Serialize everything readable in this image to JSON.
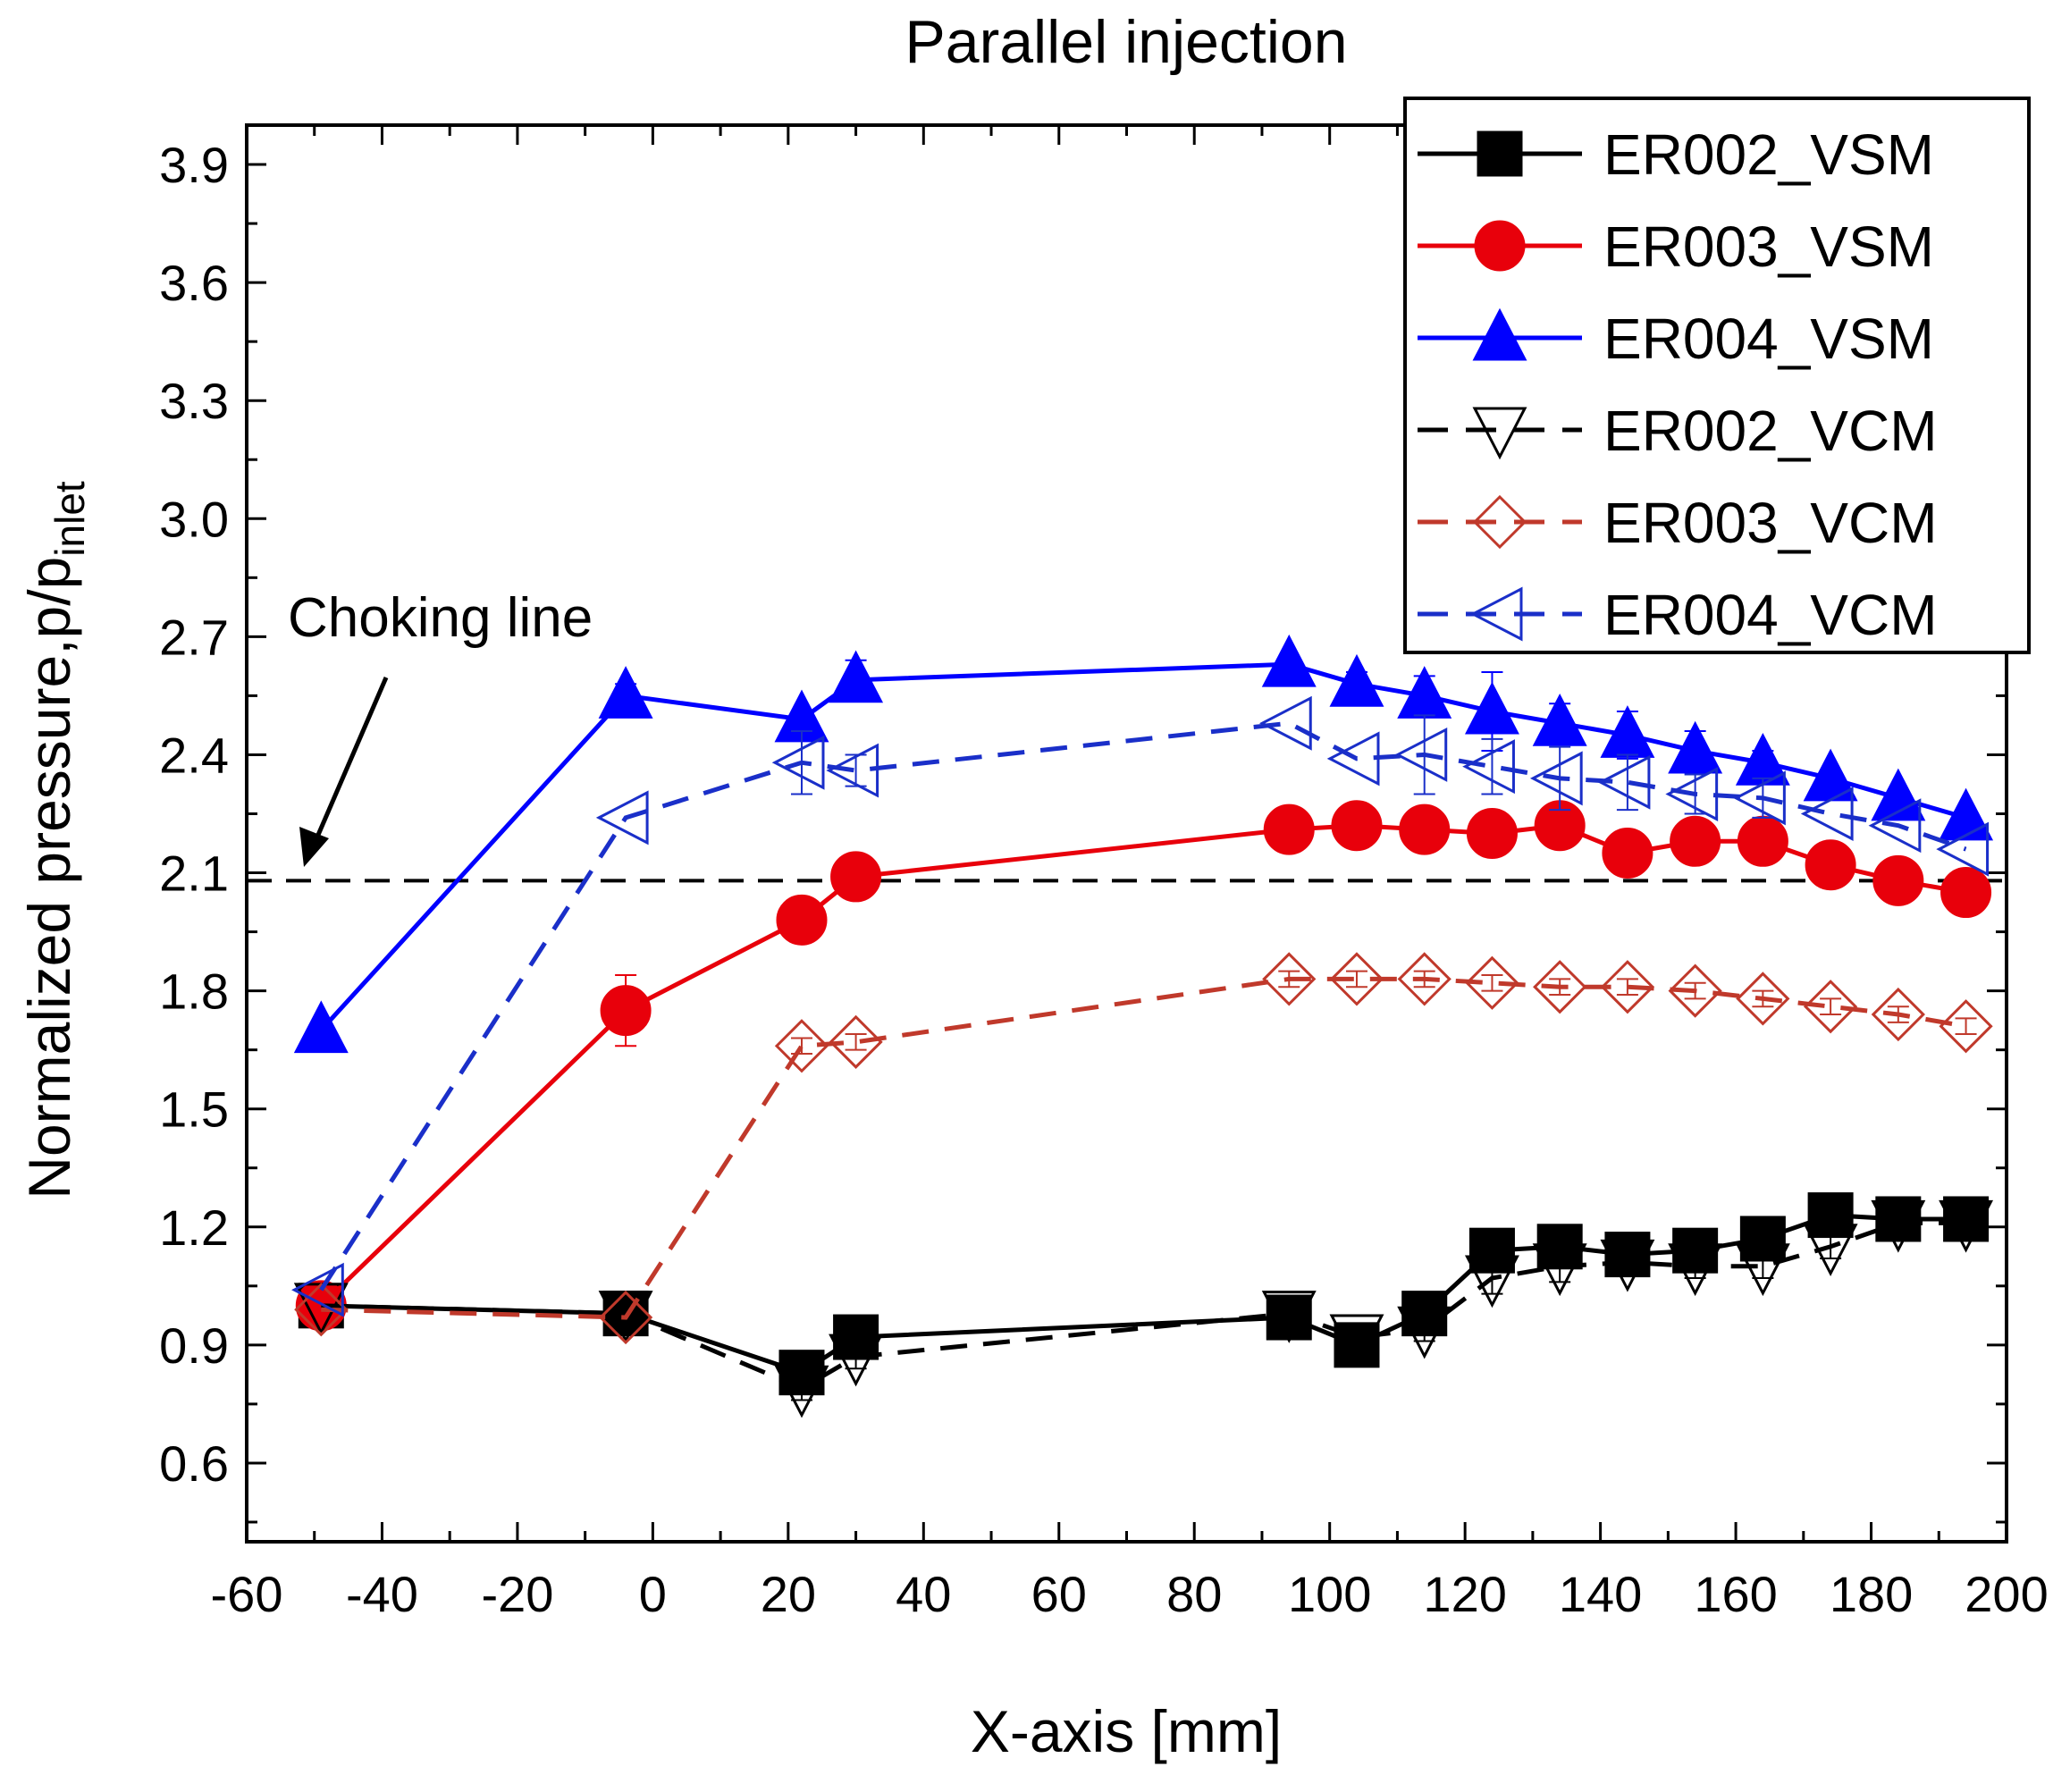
{
  "chart_data": {
    "type": "line",
    "title": "Parallel injection",
    "xlabel": "X-axis [mm]",
    "ylabel_main": "Normalized pressure,p/p",
    "ylabel_sub": "inlet",
    "xlim": [
      -60,
      200
    ],
    "ylim": [
      0.4,
      4.0
    ],
    "x_ticks": [
      -60,
      -40,
      -20,
      0,
      20,
      40,
      60,
      80,
      100,
      120,
      140,
      160,
      180,
      200
    ],
    "x_tick_labels": [
      "-60",
      "-40",
      "-20",
      "0",
      "20",
      "40",
      "60",
      "80",
      "100",
      "120",
      "140",
      "160",
      "180",
      "200"
    ],
    "y_ticks": [
      0.6,
      0.9,
      1.2,
      1.5,
      1.8,
      2.1,
      2.4,
      2.7,
      3.0,
      3.3,
      3.6,
      3.9
    ],
    "y_tick_labels": [
      "0.6",
      "0.9",
      "1.2",
      "1.5",
      "1.8",
      "2.1",
      "2.4",
      "2.7",
      "3.0",
      "3.3",
      "3.6",
      "3.9"
    ],
    "reference_line": {
      "y": 2.08,
      "style": "dashed",
      "color": "#000000"
    },
    "annotation": {
      "text": "Choking line",
      "points_to": [
        -50,
        2.1
      ]
    },
    "legend_position": "top-right",
    "series": [
      {
        "name": "ER002_VSM",
        "color": "#000000",
        "dash": "solid",
        "marker": "square",
        "filled": true,
        "x": [
          -49,
          -4,
          22,
          30,
          94,
          104,
          114,
          124,
          134,
          144,
          154,
          164,
          174,
          184,
          194
        ],
        "y": [
          1.0,
          0.98,
          0.83,
          0.92,
          0.97,
          0.9,
          0.98,
          1.14,
          1.15,
          1.13,
          1.14,
          1.17,
          1.23,
          1.22,
          1.22
        ],
        "err": [
          0,
          0,
          0,
          0,
          0,
          0,
          0,
          0,
          0,
          0,
          0,
          0,
          0,
          0,
          0
        ]
      },
      {
        "name": "ER003_VSM",
        "color": "#e8000b",
        "dash": "solid",
        "marker": "circle",
        "filled": true,
        "x": [
          -49,
          -4,
          22,
          30,
          94,
          104,
          114,
          124,
          134,
          144,
          154,
          164,
          174,
          184,
          194
        ],
        "y": [
          1.0,
          1.75,
          1.98,
          2.09,
          2.21,
          2.22,
          2.21,
          2.2,
          2.22,
          2.15,
          2.18,
          2.18,
          2.12,
          2.08,
          2.05
        ],
        "err": [
          0,
          0.09,
          0,
          0,
          0,
          0,
          0,
          0,
          0,
          0,
          0,
          0,
          0,
          0,
          0
        ]
      },
      {
        "name": "ER004_VSM",
        "color": "#0000ff",
        "dash": "solid",
        "marker": "triangle-up",
        "filled": true,
        "x": [
          -49,
          -4,
          22,
          30,
          94,
          104,
          114,
          124,
          134,
          144,
          154,
          164,
          174,
          184,
          194
        ],
        "y": [
          1.7,
          2.55,
          2.49,
          2.59,
          2.63,
          2.58,
          2.55,
          2.51,
          2.48,
          2.45,
          2.41,
          2.38,
          2.34,
          2.29,
          2.24
        ],
        "err": [
          0,
          0.03,
          0,
          0.05,
          0,
          0.03,
          0.05,
          0.1,
          0.05,
          0.06,
          0.05,
          0.03,
          0,
          0,
          0
        ]
      },
      {
        "name": "ER002_VCM",
        "color": "#000000",
        "dash": "dashed",
        "marker": "triangle-down",
        "filled": false,
        "x": [
          -49,
          -4,
          22,
          30,
          94,
          104,
          114,
          124,
          134,
          144,
          154,
          164,
          174,
          184,
          194
        ],
        "y": [
          1.0,
          0.98,
          0.79,
          0.87,
          0.98,
          0.92,
          0.94,
          1.07,
          1.1,
          1.11,
          1.1,
          1.1,
          1.15,
          1.21,
          1.21
        ],
        "err": [
          0,
          0,
          0.03,
          0.03,
          0,
          0,
          0.03,
          0.04,
          0.04,
          0.03,
          0.03,
          0.03,
          0.03,
          0.03,
          0.03
        ]
      },
      {
        "name": "ER003_VCM",
        "color": "#c0392b",
        "dash": "dashed",
        "marker": "diamond",
        "filled": false,
        "x": [
          -49,
          -4,
          22,
          30,
          94,
          104,
          114,
          124,
          134,
          144,
          154,
          164,
          174,
          184,
          194
        ],
        "y": [
          0.99,
          0.97,
          1.66,
          1.67,
          1.83,
          1.83,
          1.83,
          1.82,
          1.81,
          1.81,
          1.8,
          1.78,
          1.76,
          1.74,
          1.71
        ],
        "err": [
          0,
          0,
          0.02,
          0.02,
          0.02,
          0.02,
          0.02,
          0.02,
          0.02,
          0.02,
          0.02,
          0.02,
          0.02,
          0.02,
          0.02
        ]
      },
      {
        "name": "ER004_VCM",
        "color": "#1a2fc9",
        "dash": "dashed",
        "marker": "triangle-left",
        "filled": false,
        "x": [
          -49,
          -4,
          22,
          30,
          94,
          104,
          114,
          124,
          134,
          144,
          154,
          164,
          174,
          184,
          194
        ],
        "y": [
          1.04,
          2.24,
          2.38,
          2.36,
          2.48,
          2.39,
          2.4,
          2.37,
          2.34,
          2.33,
          2.3,
          2.29,
          2.25,
          2.22,
          2.16
        ],
        "err": [
          0,
          0,
          0.08,
          0.04,
          0,
          0,
          0.1,
          0.07,
          0.08,
          0.07,
          0.05,
          0.05,
          0,
          0,
          0
        ]
      }
    ]
  }
}
